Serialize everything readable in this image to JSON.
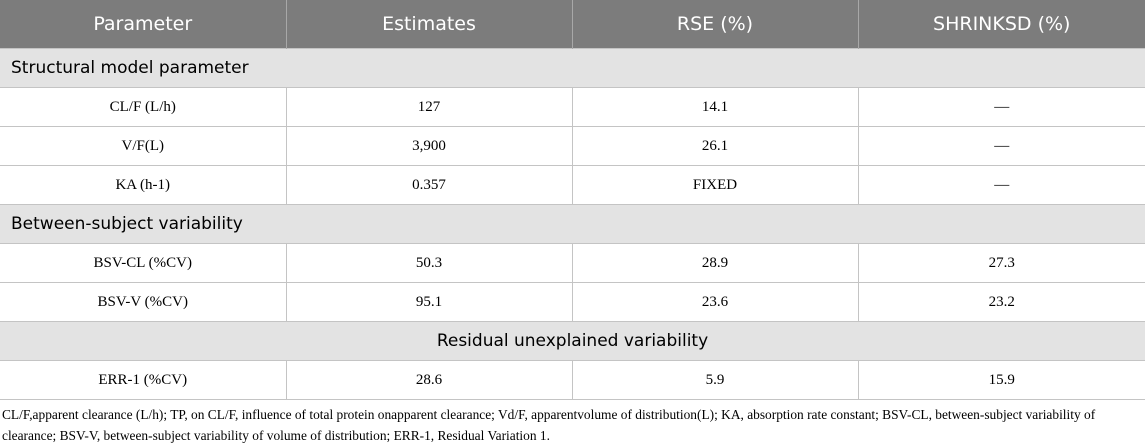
{
  "header": [
    "Parameter",
    "Estimates",
    "RSE (%)",
    "SHRINKSD (%)"
  ],
  "sections": [
    {
      "title": "Structural model parameter",
      "align": "left",
      "rows": [
        [
          "CL/F (L/h)",
          "127",
          "14.1",
          "—"
        ],
        [
          "V/F(L)",
          "3,900",
          "26.1",
          "—"
        ],
        [
          "KA (h-1)",
          "0.357",
          "FIXED",
          "—"
        ]
      ]
    },
    {
      "title": "Between-subject variability",
      "align": "left",
      "rows": [
        [
          "BSV-CL (%CV)",
          "50.3",
          "28.9",
          "27.3"
        ],
        [
          "BSV-V (%CV)",
          "95.1",
          "23.6",
          "23.2"
        ]
      ]
    },
    {
      "title": "Residual unexplained variability",
      "align": "center",
      "rows": [
        [
          "ERR-1 (%CV)",
          "28.6",
          "5.9",
          "15.9"
        ]
      ]
    }
  ],
  "footnote": "CL/F,apparent clearance (L/h); TP, on CL/F, influence of total protein onapparent clearance; Vd/F, apparentvolume of distribution(L); KA, absorption rate constant; BSV-CL, between-subject variability of clearance; BSV-V, between-subject variability of volume of distribution; ERR-1, Residual Variation 1."
}
